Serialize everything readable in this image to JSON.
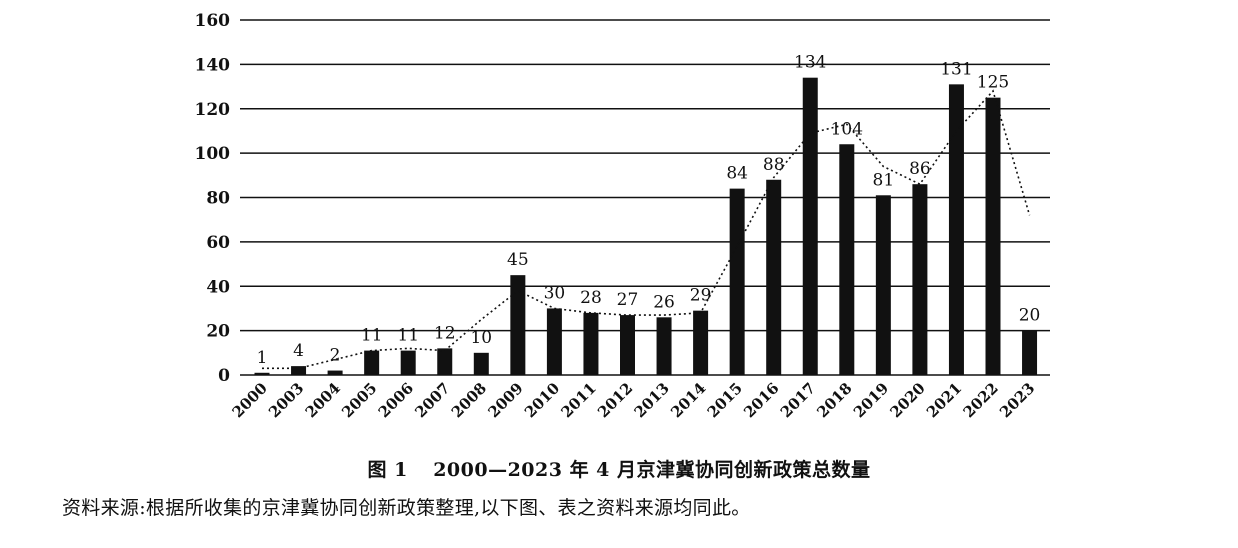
{
  "figure": {
    "label": "图 1",
    "caption": "2000—2023 年 4 月京津冀协同创新政策总数量",
    "source": "资料来源:根据所收集的京津冀协同创新政策整理,以下图、表之资料来源均同此。"
  },
  "chart_data": {
    "type": "bar",
    "categories": [
      "2000",
      "2003",
      "2004",
      "2005",
      "2006",
      "2007",
      "2008",
      "2009",
      "2010",
      "2011",
      "2012",
      "2013",
      "2014",
      "2015",
      "2016",
      "2017",
      "2018",
      "2019",
      "2020",
      "2021",
      "2022",
      "2023"
    ],
    "series": [
      {
        "values": [
          1,
          4,
          2,
          11,
          11,
          12,
          10,
          45,
          30,
          28,
          27,
          26,
          29,
          84,
          88,
          134,
          104,
          81,
          86,
          131,
          125,
          20
        ]
      }
    ],
    "trend_line": {
      "style": "dotted",
      "values": [
        3,
        3,
        7,
        11,
        12,
        11,
        25,
        38,
        30,
        28,
        27,
        27,
        28,
        58,
        89,
        109,
        113,
        94,
        86,
        110,
        128,
        72
      ]
    },
    "data_labels": [
      "1",
      "4",
      "2",
      "11",
      "11",
      "12",
      "10",
      "45",
      "30",
      "28",
      "27",
      "26",
      "29",
      "84",
      "88",
      "134",
      "104",
      "81",
      "86",
      "131",
      "125",
      "20"
    ],
    "yticks": [
      0,
      20,
      40,
      60,
      80,
      100,
      120,
      140,
      160
    ],
    "ylim": [
      0,
      160
    ],
    "grid": "horizontal",
    "bar_color": "#111111"
  }
}
